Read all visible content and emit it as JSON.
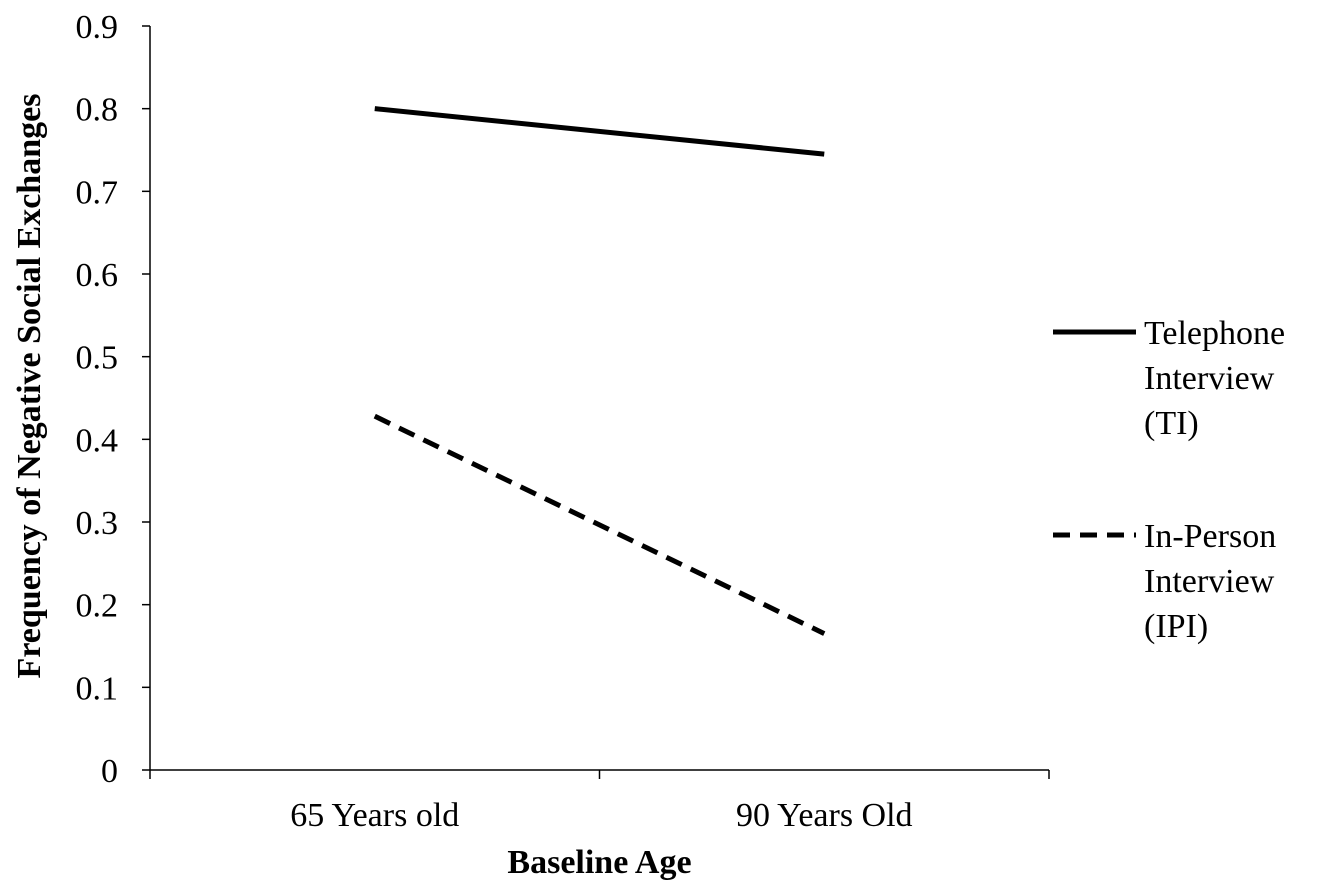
{
  "chart_data": {
    "type": "line",
    "title": "",
    "xlabel": "Baseline Age",
    "ylabel": "Frequency of Negative Social Exchanges",
    "categories": [
      "65 Years old",
      "90 Years Old"
    ],
    "ylim": [
      0,
      0.9
    ],
    "yticks": [
      "0",
      "0.1",
      "0.2",
      "0.3",
      "0.4",
      "0.5",
      "0.6",
      "0.7",
      "0.8",
      "0.9"
    ],
    "grid": false,
    "legend_position": "right",
    "series": [
      {
        "name": "Telephone Interview (TI)",
        "legend_lines": [
          "Telephone",
          "Interview",
          "(TI)"
        ],
        "values": [
          0.8,
          0.745
        ],
        "line_style": "solid",
        "color": "#000000"
      },
      {
        "name": "In-Person Interview (IPI)",
        "legend_lines": [
          "In-Person",
          "Interview",
          "(IPI)"
        ],
        "values": [
          0.428,
          0.165
        ],
        "line_style": "dashed",
        "color": "#000000"
      }
    ]
  }
}
